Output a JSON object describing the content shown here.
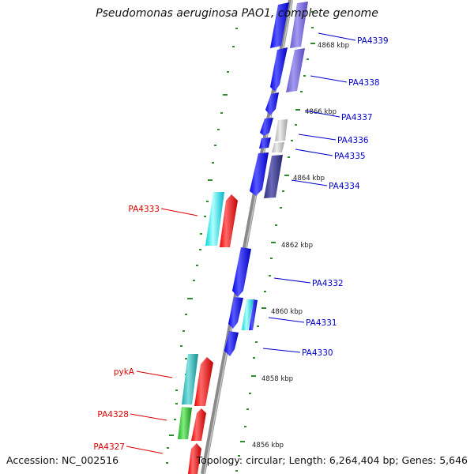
{
  "title": "Pseudomonas aeruginosa PAO1, complete genome",
  "footer": {
    "accession": "Accession: NC_002516",
    "topology": "Topology: circular; Length: 6,264,404 bp; Genes: 5,646"
  },
  "colors": {
    "backbone": "#8a8a8a",
    "tick": "#2e8b2e",
    "right_label": "#0000cc",
    "left_label": "#dd0000"
  },
  "scale_labels": [
    "4868 kbp",
    "4866 kbp",
    "4864 kbp",
    "4862 kbp",
    "4860 kbp",
    "4858 kbp",
    "4856 kbp"
  ],
  "genes_right": [
    "PA4339",
    "PA4338",
    "PA4337",
    "PA4336",
    "PA4335",
    "PA4334",
    "PA4332",
    "PA4331",
    "PA4330"
  ],
  "genes_left": [
    "PA4333",
    "pykA",
    "PA4328",
    "PA4327"
  ]
}
